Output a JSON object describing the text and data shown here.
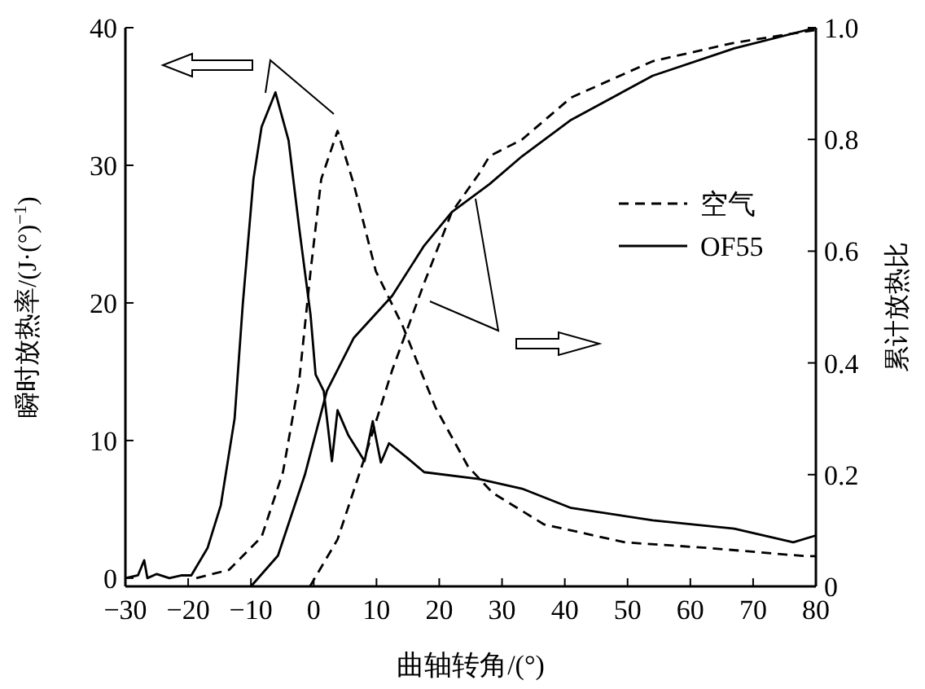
{
  "chart_data": {
    "type": "line",
    "xlabel": "曲轴转角/(°)",
    "ylabel": "瞬时放热率/(J·(°)$^{−1}$)",
    "y2label": "累计放热比",
    "xlim": [
      -30,
      80
    ],
    "xticks": [
      -30,
      -20,
      -10,
      0,
      10,
      20,
      30,
      40,
      50,
      60,
      70,
      80
    ],
    "ylim": [
      -0.6,
      40
    ],
    "yticks": [
      0,
      10,
      20,
      30,
      40
    ],
    "y2lim": [
      0,
      1
    ],
    "y2ticks": [
      0,
      0.2,
      0.4,
      0.6,
      0.8,
      {
        "value": 1,
        "label": "1.0"
      }
    ],
    "legend": "right",
    "grid": false,
    "series": [
      {
        "name": "空气",
        "color": "#000000",
        "line_style": "dashed",
        "x": [
          -18.7,
          -13.5,
          -8.3,
          -4.9,
          -2.3,
          -0.5,
          1.2,
          3.8,
          6.4,
          9.9,
          14.2,
          19.4,
          24.6,
          28.5,
          36.7,
          49.6,
          62.6,
          78.2,
          80
        ],
        "values": [
          0,
          0.6,
          3,
          7.7,
          14.4,
          22.3,
          29,
          32.5,
          28.6,
          22.3,
          18.3,
          12.4,
          8.1,
          6.2,
          3.9,
          2.6,
          2.2,
          1.6,
          1.6
        ]
      },
      {
        "name": "OF55",
        "color": "#000000",
        "line_style": "solid",
        "x": [
          -30,
          -28,
          -27,
          -26.5,
          -25,
          -23,
          -21,
          -19.5,
          -16.9,
          -14.8,
          -12.6,
          -11.3,
          -9.6,
          -8.3,
          -6.1,
          -4,
          -2.3,
          -0.5,
          0.3,
          1.6,
          2.9,
          3.8,
          5.5,
          8.1,
          9.4,
          10.7,
          12,
          15,
          17.6,
          26.3,
          33.2,
          41,
          54,
          67,
          76.4,
          80
        ],
        "values": [
          0,
          0.2,
          1.3,
          0,
          0.3,
          0,
          0.2,
          0.2,
          2.2,
          5.3,
          11.6,
          19.9,
          29,
          32.8,
          35.3,
          31.8,
          25.4,
          19.1,
          14.8,
          13.6,
          8.5,
          12.2,
          10.4,
          8.5,
          11.4,
          8.4,
          9.8,
          8.7,
          7.7,
          7.2,
          6.5,
          5.1,
          4.2,
          3.6,
          2.6,
          3.1
        ]
      },
      {
        "color": "#000000",
        "line_style": "dashed",
        "axis": "y2",
        "x": [
          -0.6,
          3.8,
          8.1,
          12.5,
          17.6,
          22,
          26.3,
          28,
          33.2,
          41,
          54,
          67,
          80
        ],
        "values": [
          0,
          0.084,
          0.23,
          0.387,
          0.543,
          0.67,
          0.738,
          0.77,
          0.8,
          0.875,
          0.94,
          0.973,
          0.996
        ]
      },
      {
        "color": "#000000",
        "line_style": "solid",
        "axis": "y2",
        "x": [
          -10,
          -5.7,
          -1.4,
          2.1,
          6.4,
          12.5,
          17.6,
          22,
          28,
          33.2,
          41,
          54,
          67,
          80
        ],
        "values": [
          0,
          0.055,
          0.2,
          0.35,
          0.445,
          0.52,
          0.61,
          0.67,
          0.72,
          0.77,
          0.835,
          0.914,
          0.963,
          1.0
        ]
      }
    ]
  }
}
